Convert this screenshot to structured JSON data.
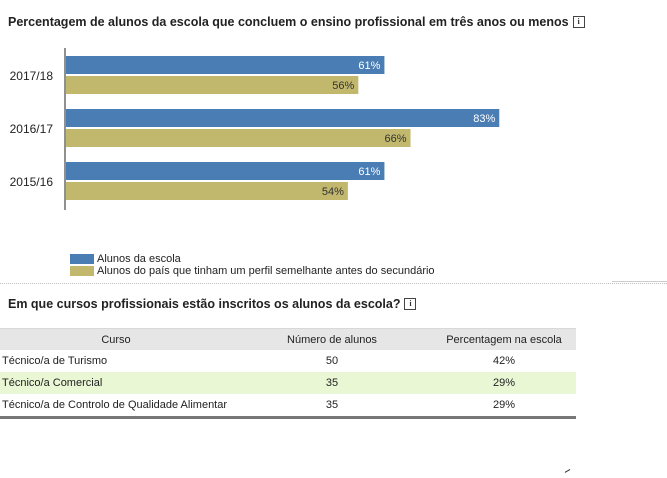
{
  "chart_section": {
    "title": "Percentagem de alunos da escola que concluem o ensino profissional em três anos ou menos",
    "info_icon": "info-icon"
  },
  "chart_data": {
    "type": "bar",
    "orientation": "horizontal",
    "title": "Percentagem de alunos da escola que concluem o ensino profissional em três anos ou menos",
    "categories": [
      "2017/18",
      "2016/17",
      "2015/16"
    ],
    "series": [
      {
        "name": "Alunos da escola",
        "values": [
          61,
          83,
          61
        ],
        "labels": [
          "61%",
          "83%",
          "61%"
        ],
        "color": "#4a7db4",
        "label_color": "#ffffff"
      },
      {
        "name": "Alunos do país que tinham um perfil semelhante antes do secundário",
        "values": [
          56,
          66,
          54
        ],
        "labels": [
          "56%",
          "66%",
          "54%"
        ],
        "color": "#c1b86e",
        "label_color": "#333333"
      }
    ],
    "xlim": [
      0,
      100
    ],
    "grid": false,
    "legend": "bottom-left"
  },
  "legend": {
    "items": [
      {
        "label": "Alunos da escola",
        "color": "#4a7db4"
      },
      {
        "label": "Alunos do país que tinham um perfil semelhante antes do secundário",
        "color": "#c1b86e"
      }
    ]
  },
  "courses_section": {
    "title": "Em que cursos profissionais estão inscritos os alunos da escola?",
    "info_icon": "info-icon",
    "headers": [
      "Curso",
      "Número de alunos",
      "Percentagem na escola"
    ],
    "rows": [
      {
        "course": "Técnico/a de Turismo",
        "students": "50",
        "percent": "42%"
      },
      {
        "course": "Técnico/a Comercial",
        "students": "35",
        "percent": "29%"
      },
      {
        "course": "Técnico/a de Controlo de Qualidade Alimentar",
        "students": "35",
        "percent": "29%"
      }
    ]
  },
  "colors": {
    "school": "#4a7db4",
    "country": "#c1b86e",
    "alt_row": "#eaf7d4",
    "header_bg": "#e6e6e6"
  }
}
